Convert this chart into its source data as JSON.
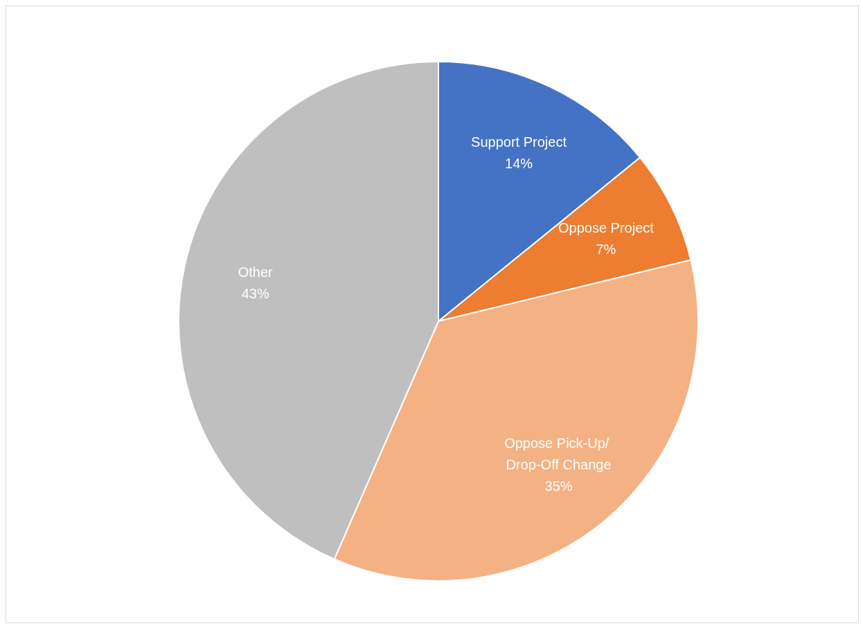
{
  "chart_data": {
    "type": "pie",
    "categories": [
      "Support Project",
      "Oppose Project",
      "Oppose Pick-Up/ Drop-Off Change",
      "Other"
    ],
    "values": [
      14,
      7,
      35,
      43
    ],
    "colors": [
      "#4472c4",
      "#ed7d31",
      "#f4b183",
      "#bfbfbf"
    ],
    "value_labels": [
      "14%",
      "7%",
      "35%",
      "43%"
    ],
    "legend": false
  }
}
